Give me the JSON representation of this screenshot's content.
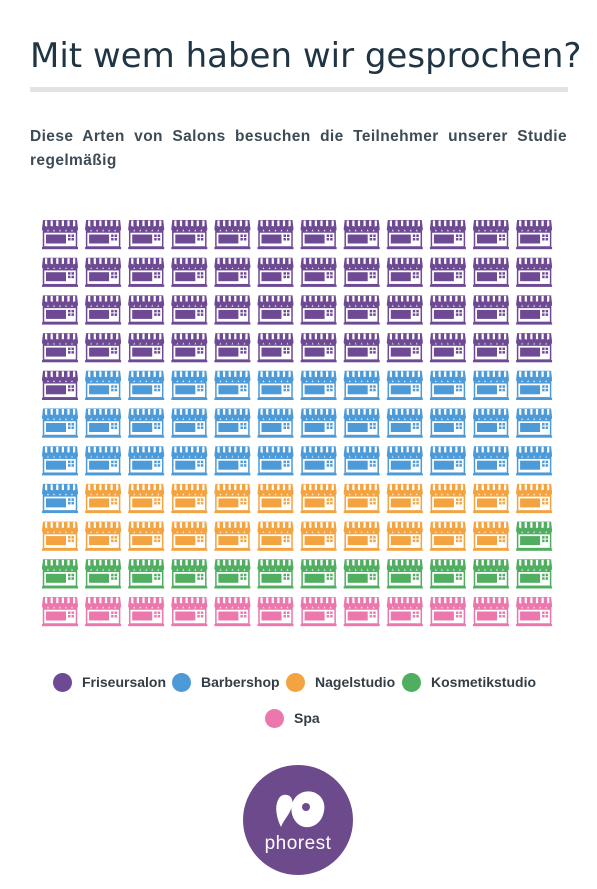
{
  "header": {
    "title": "Mit wem haben wir gesprochen?",
    "subtitle": "Diese Arten von Salons besuchen die Teilnehmer unserer Studie regelmäßig"
  },
  "chart_data": {
    "type": "waffle",
    "columns": 12,
    "rows": 11,
    "total_icons": 132,
    "icon": "storefront-icon",
    "categories": [
      "Friseursalon",
      "Barbershop",
      "Nagelstudio",
      "Kosmetikstudio",
      "Spa"
    ],
    "values": [
      49,
      36,
      22,
      13,
      12
    ],
    "colors": [
      "#6f4a94",
      "#4d9ad8",
      "#f3a340",
      "#4fae5f",
      "#ec77ac"
    ]
  },
  "legend": {
    "items": [
      {
        "label": "Friseursalon",
        "color": "#6f4a94"
      },
      {
        "label": "Barbershop",
        "color": "#4d9ad8"
      },
      {
        "label": "Nagelstudio",
        "color": "#f3a340"
      },
      {
        "label": "Kosmetikstudio",
        "color": "#4fae5f"
      },
      {
        "label": "Spa",
        "color": "#ec77ac"
      }
    ]
  },
  "logo": {
    "text": "phorest"
  }
}
